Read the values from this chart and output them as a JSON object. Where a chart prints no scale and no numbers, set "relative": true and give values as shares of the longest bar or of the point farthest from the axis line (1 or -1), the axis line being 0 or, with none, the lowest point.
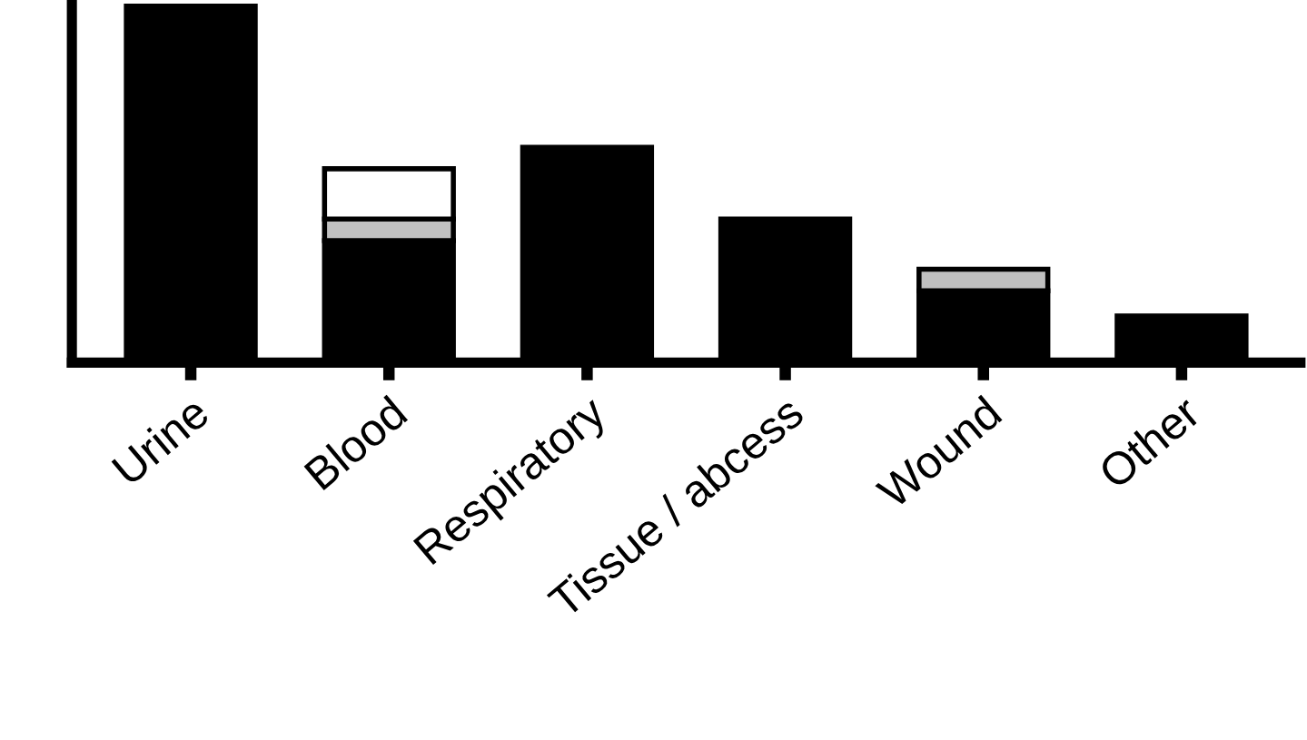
{
  "chart_data": {
    "type": "bar",
    "relative": true,
    "stacked": true,
    "categories": [
      "Urine",
      "Blood",
      "Respiratory",
      "Tissue / abcess",
      "Wound",
      "Other"
    ],
    "series": [
      {
        "color": "#000000",
        "values": [
          1,
          0.34,
          0.6,
          0.4,
          0.2,
          0.13
        ]
      },
      {
        "color": "#c0c0c0",
        "values": [
          null,
          0.06,
          null,
          null,
          0.06,
          null
        ]
      },
      {
        "color": "#ffffff",
        "values": [
          null,
          0.14,
          null,
          null,
          null,
          null
        ]
      }
    ]
  }
}
